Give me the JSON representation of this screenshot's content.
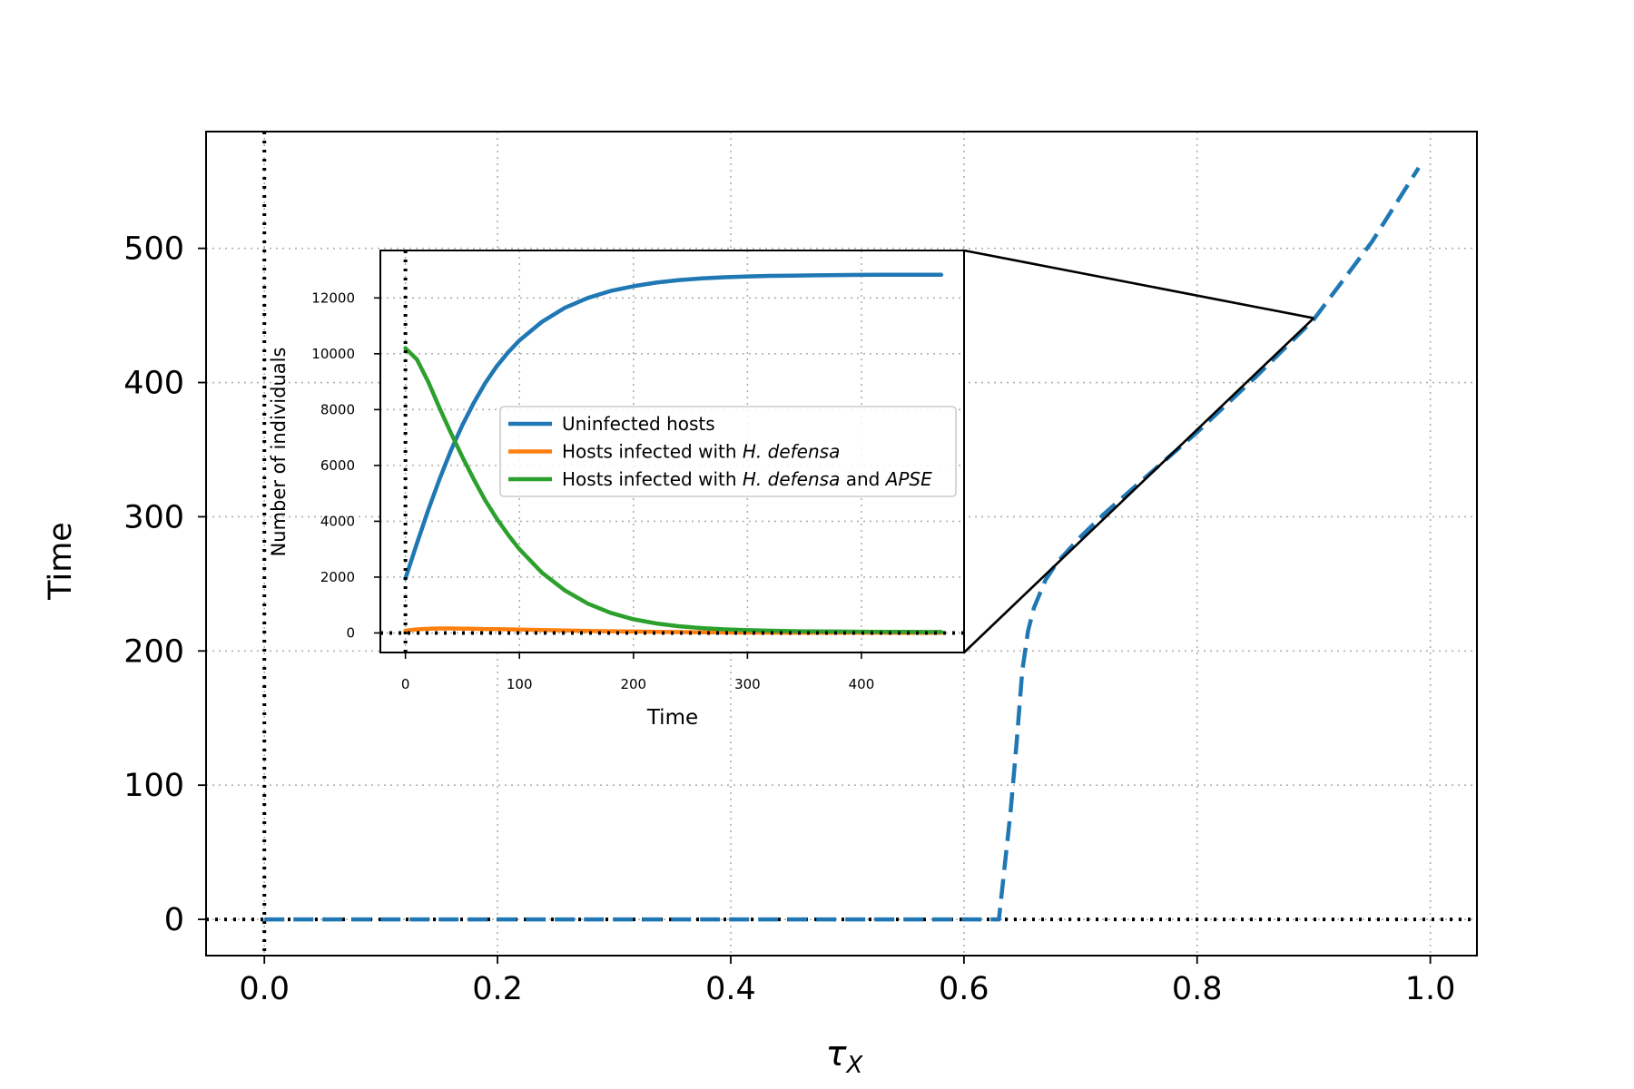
{
  "chart_data": [
    {
      "type": "line",
      "title": "",
      "xlabel": "τ",
      "xlabel_sub": "X",
      "ylabel": "Time",
      "xlim": [
        -0.05,
        1.04
      ],
      "ylim": [
        -27,
        587
      ],
      "xticks": [
        "0.0",
        "0.2",
        "0.4",
        "0.6",
        "0.8",
        "1.0"
      ],
      "yticks": [
        "0",
        "100",
        "200",
        "300",
        "400",
        "500"
      ],
      "grid": true,
      "reference_lines": {
        "x": 0,
        "y": 0,
        "style": "dotted",
        "color": "#000000"
      },
      "series": [
        {
          "color": "#1f77b4",
          "style": "dashed",
          "x": [
            0.0,
            0.1,
            0.2,
            0.3,
            0.4,
            0.5,
            0.6,
            0.63,
            0.635,
            0.64,
            0.645,
            0.65,
            0.655,
            0.66,
            0.67,
            0.68,
            0.7,
            0.72,
            0.75,
            0.8,
            0.85,
            0.9,
            0.95,
            0.99
          ],
          "values": [
            0,
            0,
            0,
            0,
            0,
            0,
            0,
            0,
            40,
            80,
            130,
            185,
            215,
            232,
            253,
            266,
            285,
            302,
            325,
            363,
            404,
            447,
            505,
            560
          ]
        }
      ],
      "zoom_connector": {
        "x": 0.9,
        "y": 448
      }
    },
    {
      "type": "line",
      "title": "",
      "xlabel": "Time",
      "ylabel": "Number of individuals",
      "xlim": [
        -22,
        490
      ],
      "ylim": [
        -700,
        13700
      ],
      "xticks": [
        "0",
        "100",
        "200",
        "300",
        "400"
      ],
      "yticks": [
        "0",
        "2000",
        "4000",
        "6000",
        "8000",
        "10000",
        "12000"
      ],
      "grid": true,
      "legend_position": "center",
      "reference_lines": {
        "x": 0,
        "y": 0,
        "style": "dotted",
        "color": "#000000"
      },
      "x": [
        0,
        10,
        20,
        30,
        40,
        50,
        60,
        70,
        80,
        90,
        100,
        120,
        140,
        160,
        180,
        200,
        220,
        240,
        260,
        280,
        300,
        320,
        340,
        360,
        380,
        400,
        420,
        440,
        470
      ],
      "series": [
        {
          "name": "Uninfected hosts",
          "legend": {
            "pre": "Uninfected hosts",
            "italic1": "",
            "mid": "",
            "italic2": ""
          },
          "color": "#1f77b4",
          "values": [
            1950,
            3200,
            4400,
            5520,
            6550,
            7450,
            8250,
            8950,
            9550,
            10050,
            10480,
            11150,
            11650,
            12000,
            12250,
            12420,
            12550,
            12640,
            12700,
            12740,
            12770,
            12790,
            12800,
            12810,
            12820,
            12825,
            12830,
            12830,
            12830
          ]
        },
        {
          "name": "Hosts infected with H. defensa",
          "legend": {
            "pre": "Hosts infected with ",
            "italic1": "H. defensa",
            "mid": "",
            "italic2": ""
          },
          "color": "#ff7f0e",
          "values": [
            80,
            130,
            150,
            160,
            160,
            155,
            150,
            140,
            135,
            130,
            120,
            105,
            90,
            75,
            60,
            50,
            40,
            30,
            25,
            20,
            15,
            12,
            10,
            8,
            6,
            5,
            4,
            3,
            2
          ]
        },
        {
          "name": "Hosts infected with H. defensa and APSE",
          "legend": {
            "pre": "Hosts infected with ",
            "italic1": "H. defensa",
            "mid": " and ",
            "italic2": "APSE"
          },
          "color": "#2ca02c",
          "values": [
            10200,
            9800,
            9000,
            8050,
            7150,
            6300,
            5500,
            4750,
            4100,
            3520,
            3000,
            2150,
            1520,
            1050,
            720,
            490,
            340,
            240,
            175,
            130,
            100,
            80,
            65,
            55,
            50,
            45,
            40,
            38,
            35
          ]
        }
      ]
    }
  ]
}
